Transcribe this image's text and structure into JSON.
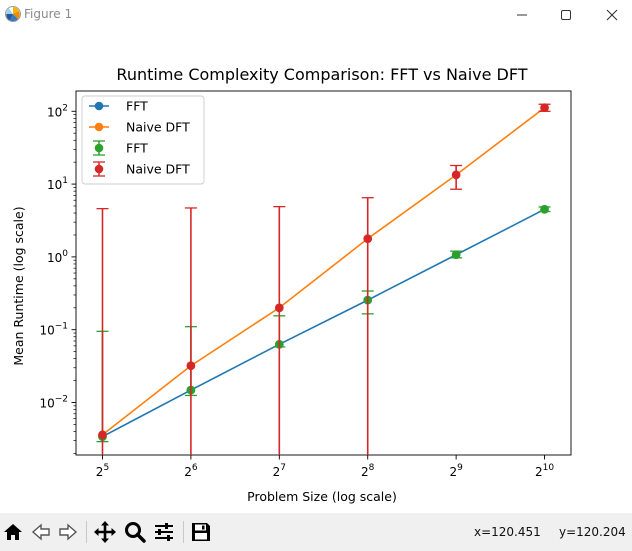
{
  "window": {
    "title": "Figure 1",
    "minimize_icon": "minimize-icon",
    "maximize_icon": "maximize-icon",
    "close_icon": "close-icon"
  },
  "toolbar": {
    "buttons": [
      "home-icon",
      "back-icon",
      "forward-icon",
      "pan-icon",
      "zoom-icon",
      "configure-subplots-icon",
      "save-icon"
    ],
    "x_readout": "x=120.451",
    "y_readout": "y=120.204"
  },
  "chart_data": {
    "type": "line",
    "title": "Runtime Complexity Comparison: FFT vs Naive DFT",
    "xlabel": "Problem Size (log scale)",
    "ylabel": "Mean Runtime (log scale)",
    "x_scale": "log2",
    "y_scale": "log10",
    "x": [
      32,
      64,
      128,
      256,
      512,
      1024
    ],
    "x_tick_bases": [
      "2",
      "2",
      "2",
      "2",
      "2",
      "2"
    ],
    "x_tick_exponents": [
      "5",
      "6",
      "7",
      "8",
      "9",
      "10"
    ],
    "y_tick_bases": [
      "10",
      "10",
      "10",
      "10",
      "10"
    ],
    "y_tick_exponents": [
      "−2",
      "−1",
      "0",
      "1",
      "2"
    ],
    "xlim": [
      26,
      1260
    ],
    "ylim": [
      0.0019,
      190
    ],
    "grid": false,
    "legend_position": "top-left",
    "series": [
      {
        "name": "FFT",
        "kind": "line",
        "color": "#1f77b4",
        "values": [
          0.0034,
          0.0148,
          0.063,
          0.255,
          1.07,
          4.5
        ]
      },
      {
        "name": "Naive DFT",
        "kind": "line",
        "color": "#ff7f0e",
        "values": [
          0.0036,
          0.032,
          0.2,
          1.78,
          13.4,
          112
        ]
      },
      {
        "name": "FFT",
        "kind": "errorbar",
        "color": "#2ca02c",
        "values": [
          0.0034,
          0.0148,
          0.063,
          0.255,
          1.07,
          4.5
        ],
        "err_upper": [
          0.095,
          0.11,
          0.155,
          0.34,
          1.2,
          4.85
        ],
        "err_lower": [
          0.0029,
          0.0125,
          0.058,
          0.165,
          0.97,
          4.2
        ]
      },
      {
        "name": "Naive DFT",
        "kind": "errorbar",
        "color": "#d62728",
        "values": [
          0.0036,
          0.032,
          0.2,
          1.78,
          13.4,
          112
        ],
        "err_upper": [
          4.6,
          4.7,
          4.9,
          6.5,
          18,
          125
        ],
        "err_lower": [
          0.0019,
          0.0019,
          0.0019,
          0.0019,
          8.5,
          100
        ]
      }
    ]
  }
}
